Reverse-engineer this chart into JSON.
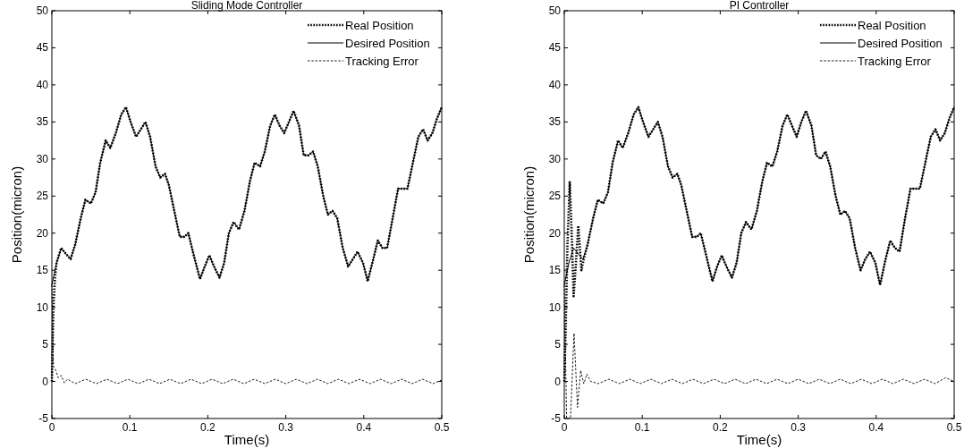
{
  "chart_data": [
    {
      "type": "line",
      "title": "Sliding Mode Controller",
      "xlabel": "Time(s)",
      "ylabel": "Position(micron)",
      "xlim": [
        0,
        0.5
      ],
      "xticks": [
        0,
        0.1,
        0.2,
        0.3,
        0.4,
        0.5
      ],
      "ylim": [
        -5,
        50
      ],
      "yticks": [
        -5,
        0,
        5,
        10,
        15,
        20,
        25,
        30,
        35,
        40,
        45,
        50
      ],
      "legend": "top right",
      "grid": false,
      "marker": "none",
      "series": [
        {
          "name": "Real Position",
          "color": "#000000",
          "line_style": "dotted",
          "x": [
            0,
            0.001,
            0.002,
            0.004,
            0.006,
            0.012,
            0.018,
            0.024,
            0.03,
            0.037,
            0.043,
            0.05,
            0.056,
            0.062,
            0.069,
            0.075,
            0.082,
            0.089,
            0.095,
            0.101,
            0.108,
            0.114,
            0.12,
            0.126,
            0.133,
            0.139,
            0.145,
            0.15,
            0.157,
            0.164,
            0.17,
            0.175,
            0.182,
            0.19,
            0.196,
            0.202,
            0.208,
            0.215,
            0.221,
            0.227,
            0.233,
            0.24,
            0.247,
            0.254,
            0.26,
            0.267,
            0.273,
            0.28,
            0.286,
            0.292,
            0.298,
            0.304,
            0.31,
            0.317,
            0.323,
            0.329,
            0.335,
            0.341,
            0.348,
            0.354,
            0.36,
            0.366,
            0.373,
            0.38,
            0.386,
            0.392,
            0.399,
            0.405,
            0.411,
            0.418,
            0.424,
            0.43,
            0.437,
            0.444,
            0.45,
            0.456,
            0.463,
            0.47,
            0.476,
            0.482,
            0.488,
            0.494,
            0.5
          ],
          "values": [
            0,
            5,
            10,
            14,
            16,
            18,
            17.2,
            16.5,
            18.5,
            22,
            24.5,
            24,
            25.5,
            29.5,
            32.5,
            31.5,
            33.5,
            36,
            37,
            35,
            33,
            34,
            35,
            33,
            29,
            27.5,
            28,
            26.5,
            23,
            19.5,
            19.5,
            20,
            17,
            13.8,
            15.5,
            17,
            15.5,
            14,
            16,
            20,
            21.5,
            20.5,
            23,
            27,
            29.5,
            29,
            31,
            34.5,
            36,
            34.5,
            33.5,
            35,
            36.5,
            34.5,
            30.5,
            30.5,
            31,
            29,
            25,
            22.5,
            23,
            22,
            18,
            15.5,
            16.5,
            17.5,
            16,
            13.5,
            16,
            19,
            18,
            18,
            22,
            26,
            26,
            26,
            29.5,
            33,
            34,
            32.5,
            33.5,
            35.5,
            37
          ]
        },
        {
          "name": "Desired Position",
          "color": "#000000",
          "line_style": "solid",
          "x": [
            0,
            0.006,
            0.012,
            0.018,
            0.024,
            0.03,
            0.037,
            0.043,
            0.05,
            0.056,
            0.062,
            0.069,
            0.075,
            0.082,
            0.089,
            0.095,
            0.101,
            0.108,
            0.114,
            0.12,
            0.126,
            0.133,
            0.139,
            0.145,
            0.15,
            0.157,
            0.164,
            0.17,
            0.175,
            0.182,
            0.19,
            0.196,
            0.202,
            0.208,
            0.215,
            0.221,
            0.227,
            0.233,
            0.24,
            0.247,
            0.254,
            0.26,
            0.267,
            0.273,
            0.28,
            0.286,
            0.292,
            0.298,
            0.304,
            0.31,
            0.317,
            0.323,
            0.329,
            0.335,
            0.341,
            0.348,
            0.354,
            0.36,
            0.366,
            0.373,
            0.38,
            0.386,
            0.392,
            0.399,
            0.405,
            0.411,
            0.418,
            0.424,
            0.43,
            0.437,
            0.444,
            0.45,
            0.456,
            0.463,
            0.47,
            0.476,
            0.482,
            0.488,
            0.494,
            0.5
          ],
          "values": [
            13,
            16,
            18,
            17.2,
            16.5,
            18.5,
            22,
            24.5,
            24,
            25.5,
            29.5,
            32.5,
            31.5,
            33.5,
            36,
            37,
            35,
            33,
            34,
            35,
            33,
            29,
            27.5,
            28,
            26.5,
            23,
            19.5,
            19.5,
            20,
            17,
            13.8,
            15.5,
            17,
            15.5,
            14,
            16,
            20,
            21.5,
            20.5,
            23,
            27,
            29.5,
            29,
            31,
            34.5,
            36,
            34.5,
            33.5,
            35,
            36.5,
            34.5,
            30.5,
            30.5,
            31,
            29,
            25,
            22.5,
            23,
            22,
            18,
            15.5,
            16.5,
            17.5,
            16,
            13.5,
            16,
            19,
            18,
            18,
            22,
            26,
            26,
            26,
            29.5,
            33,
            34,
            32.5,
            33.5,
            35.5,
            37
          ]
        },
        {
          "name": "Tracking Error",
          "color": "#000000",
          "line_style": "dashed",
          "x": [
            0,
            0.002,
            0.005,
            0.008,
            0.012,
            0.016,
            0.02,
            0.03,
            0.0435,
            0.057,
            0.0705,
            0.084,
            0.0975,
            0.111,
            0.1245,
            0.138,
            0.1515,
            0.165,
            0.1785,
            0.192,
            0.2055,
            0.219,
            0.2325,
            0.246,
            0.2595,
            0.273,
            0.2865,
            0.3,
            0.3135,
            0.327,
            0.3405,
            0.354,
            0.3675,
            0.381,
            0.3945,
            0.408,
            0.4215,
            0.435,
            0.4485,
            0.462,
            0.4755,
            0.489,
            0.5
          ],
          "values": [
            13,
            2,
            1.5,
            0.5,
            0.8,
            -0.2,
            0.3,
            -0.3,
            0.3,
            -0.3,
            0.3,
            -0.3,
            0.3,
            -0.3,
            0.3,
            -0.3,
            0.3,
            -0.3,
            0.3,
            -0.3,
            0.3,
            -0.3,
            0.3,
            -0.3,
            0.3,
            -0.3,
            0.3,
            -0.3,
            0.3,
            -0.3,
            0.3,
            -0.3,
            0.3,
            -0.3,
            0.3,
            -0.3,
            0.3,
            -0.3,
            0.3,
            -0.3,
            0.3,
            -0.3,
            0.2
          ]
        }
      ]
    },
    {
      "type": "line",
      "title": "PI Controller",
      "xlabel": "Time(s)",
      "ylabel": "Position(micron)",
      "xlim": [
        0,
        0.5
      ],
      "xticks": [
        0,
        0.1,
        0.2,
        0.3,
        0.4,
        0.5
      ],
      "ylim": [
        -5,
        50
      ],
      "yticks": [
        -5,
        0,
        5,
        10,
        15,
        20,
        25,
        30,
        35,
        40,
        45,
        50
      ],
      "legend": "top right",
      "grid": false,
      "marker": "none",
      "series": [
        {
          "name": "Real Position",
          "color": "#000000",
          "line_style": "dotted",
          "x": [
            0,
            0.002,
            0.004,
            0.007,
            0.0095,
            0.012,
            0.015,
            0.018,
            0.022,
            0.025,
            0.03,
            0.037,
            0.043,
            0.05,
            0.056,
            0.062,
            0.069,
            0.075,
            0.082,
            0.089,
            0.095,
            0.101,
            0.108,
            0.114,
            0.12,
            0.126,
            0.133,
            0.139,
            0.145,
            0.15,
            0.157,
            0.164,
            0.17,
            0.175,
            0.182,
            0.19,
            0.196,
            0.202,
            0.208,
            0.215,
            0.221,
            0.227,
            0.233,
            0.24,
            0.247,
            0.254,
            0.26,
            0.267,
            0.273,
            0.28,
            0.286,
            0.292,
            0.298,
            0.304,
            0.31,
            0.317,
            0.323,
            0.329,
            0.335,
            0.341,
            0.348,
            0.354,
            0.36,
            0.366,
            0.373,
            0.38,
            0.386,
            0.392,
            0.399,
            0.405,
            0.411,
            0.418,
            0.424,
            0.43,
            0.437,
            0.444,
            0.45,
            0.456,
            0.463,
            0.47,
            0.476,
            0.482,
            0.488,
            0.494,
            0.5
          ],
          "values": [
            0,
            8,
            18,
            27,
            20,
            11.5,
            16,
            21,
            15,
            16.5,
            18.5,
            22,
            24.5,
            24,
            25.5,
            29.5,
            32.5,
            31.5,
            33.5,
            36,
            37,
            35,
            33,
            34,
            35,
            33,
            29,
            27.5,
            28,
            26.5,
            23,
            19.5,
            19.5,
            20,
            17,
            13.5,
            15.5,
            17,
            15.5,
            14,
            16,
            20,
            21.5,
            20.5,
            23,
            27,
            29.5,
            29,
            31,
            34.5,
            36,
            34.5,
            33,
            35,
            36.5,
            34.5,
            30.5,
            30,
            31,
            29,
            25,
            22.5,
            23,
            22,
            18,
            15,
            16.5,
            17.5,
            16,
            13,
            16,
            19,
            18,
            17.5,
            22,
            26,
            26,
            26,
            29.5,
            33,
            34,
            32.5,
            33.5,
            35.5,
            37
          ]
        },
        {
          "name": "Desired Position",
          "color": "#000000",
          "line_style": "solid",
          "x": [
            0,
            0.006,
            0.012,
            0.018,
            0.024,
            0.03,
            0.037,
            0.043,
            0.05,
            0.056,
            0.062,
            0.069,
            0.075,
            0.082,
            0.089,
            0.095,
            0.101,
            0.108,
            0.114,
            0.12,
            0.126,
            0.133,
            0.139,
            0.145,
            0.15,
            0.157,
            0.164,
            0.17,
            0.175,
            0.182,
            0.19,
            0.196,
            0.202,
            0.208,
            0.215,
            0.221,
            0.227,
            0.233,
            0.24,
            0.247,
            0.254,
            0.26,
            0.267,
            0.273,
            0.28,
            0.286,
            0.292,
            0.298,
            0.304,
            0.31,
            0.317,
            0.323,
            0.329,
            0.335,
            0.341,
            0.348,
            0.354,
            0.36,
            0.366,
            0.373,
            0.38,
            0.386,
            0.392,
            0.399,
            0.405,
            0.411,
            0.418,
            0.424,
            0.43,
            0.437,
            0.444,
            0.45,
            0.456,
            0.463,
            0.47,
            0.476,
            0.482,
            0.488,
            0.494,
            0.5
          ],
          "values": [
            13,
            16,
            18,
            17.2,
            16.5,
            18.5,
            22,
            24.5,
            24,
            25.5,
            29.5,
            32.5,
            31.5,
            33.5,
            36,
            37,
            35,
            33,
            34,
            35,
            33,
            29,
            27.5,
            28,
            26.5,
            23,
            19.5,
            19.5,
            20,
            17,
            13.5,
            15.5,
            17,
            15.5,
            14,
            16,
            20,
            21.5,
            20.5,
            23,
            27,
            29.5,
            29,
            31,
            34.5,
            36,
            34.5,
            33,
            35,
            36.5,
            34.5,
            30.5,
            30,
            31,
            29,
            25,
            22.5,
            23,
            22,
            18,
            15,
            16.5,
            17.5,
            16,
            13,
            16,
            19,
            18,
            17.5,
            22,
            26,
            26,
            26,
            29.5,
            33,
            34,
            32.5,
            33.5,
            35.5,
            37
          ]
        },
        {
          "name": "Tracking Error",
          "color": "#000000",
          "line_style": "dashed",
          "x": [
            0,
            0.003,
            0.008,
            0.0125,
            0.017,
            0.021,
            0.025,
            0.029,
            0.034,
            0.0435,
            0.057,
            0.0705,
            0.084,
            0.0975,
            0.111,
            0.1245,
            0.138,
            0.1515,
            0.165,
            0.1785,
            0.192,
            0.2055,
            0.219,
            0.2325,
            0.246,
            0.2595,
            0.273,
            0.2865,
            0.3,
            0.3135,
            0.327,
            0.3405,
            0.354,
            0.3675,
            0.381,
            0.3945,
            0.408,
            0.4215,
            0.435,
            0.4485,
            0.462,
            0.4755,
            0.489,
            0.5
          ],
          "values": [
            13,
            -5,
            -5,
            6.5,
            -3.5,
            1.5,
            -0.3,
            1,
            0,
            -0.3,
            0.3,
            -0.3,
            0.3,
            -0.3,
            0.3,
            -0.3,
            0.3,
            -0.3,
            0.3,
            -0.3,
            0.3,
            -0.3,
            0.3,
            -0.3,
            0.3,
            -0.3,
            0.3,
            -0.3,
            0.3,
            -0.3,
            0.3,
            -0.3,
            0.3,
            -0.3,
            0.3,
            -0.3,
            0.3,
            -0.3,
            0.3,
            -0.3,
            0.3,
            -0.3,
            0.5,
            0
          ]
        }
      ]
    }
  ]
}
